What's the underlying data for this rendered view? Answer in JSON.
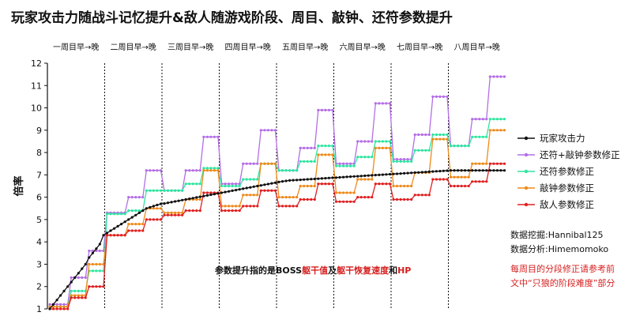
{
  "title": "玩家攻击力随战斗记忆提升&敌人随游戏阶段、周目、敲钟、还符参数提升",
  "credits": [
    "数据挖掘:Hannibal125",
    "数据分析:Himemomoko"
  ],
  "remark": "每周目的分段修正请参考前文中“只狼的阶段难度”部分",
  "note": {
    "prefix": "参数提升指的是BOSS",
    "hl1": "躯干值",
    "mid1": "及",
    "hl2": "躯干恢复速度",
    "mid2": "和",
    "hl3": "HP"
  },
  "colors": {
    "player": "#111111",
    "charm_bell": "#b46ee6",
    "charm": "#2ee6a0",
    "bell": "#ee8a1a",
    "enemy": "#e02020",
    "highlight": "#d61f1f"
  },
  "chart_data": {
    "type": "line",
    "title": "玩家攻击力随战斗记忆提升&敌人随游戏阶段、周目、敲钟、还符参数提升",
    "ylabel": "倍率",
    "ylim": [
      1,
      12
    ],
    "yticks": [
      1,
      2,
      3,
      4,
      5,
      6,
      7,
      8,
      9,
      10,
      11,
      12
    ],
    "grid": false,
    "legend_position": "right",
    "cycles": [
      "一周目早→晚",
      "二周目早→晚",
      "三周目早→晚",
      "四周目早→晚",
      "五周目早→晚",
      "六周目早→晚",
      "七周目早→晚",
      "八周目早→晚"
    ],
    "points_per_cycle": 16,
    "series": [
      {
        "name": "玩家攻击力",
        "values": [
          1.0,
          1.2,
          1.4,
          1.6,
          1.8,
          2.0,
          2.2,
          2.4,
          2.6,
          2.8,
          3.0,
          3.3,
          3.5,
          3.7,
          3.9,
          4.3,
          4.4,
          4.5,
          4.6,
          4.7,
          4.8,
          4.9,
          5.0,
          5.1,
          5.2,
          5.3,
          5.4,
          5.5,
          5.55,
          5.6,
          5.65,
          5.7,
          5.72,
          5.75,
          5.78,
          5.81,
          5.84,
          5.87,
          5.9,
          5.93,
          5.96,
          5.99,
          6.02,
          6.05,
          6.08,
          6.11,
          6.14,
          6.17,
          6.2,
          6.23,
          6.26,
          6.29,
          6.32,
          6.35,
          6.38,
          6.41,
          6.44,
          6.47,
          6.5,
          6.53,
          6.56,
          6.59,
          6.62,
          6.65,
          6.68,
          6.71,
          6.73,
          6.75,
          6.76,
          6.77,
          6.78,
          6.79,
          6.8,
          6.81,
          6.82,
          6.83,
          6.84,
          6.85,
          6.86,
          6.87,
          6.88,
          6.89,
          6.9,
          6.91,
          6.92,
          6.93,
          6.94,
          6.95,
          6.96,
          6.97,
          6.98,
          6.99,
          7.0,
          7.01,
          7.02,
          7.03,
          7.04,
          7.05,
          7.06,
          7.07,
          7.08,
          7.09,
          7.1,
          7.11,
          7.12,
          7.13,
          7.14,
          7.15,
          7.16,
          7.17,
          7.18,
          7.19,
          7.2,
          7.2,
          7.2,
          7.2,
          7.2,
          7.2,
          7.2,
          7.2,
          7.2,
          7.2,
          7.2,
          7.2,
          7.2,
          7.2,
          7.2,
          7.2
        ]
      },
      {
        "name": "还符+敲钟参数修正",
        "values": [
          1.2,
          1.2,
          1.2,
          1.2,
          1.2,
          1.2,
          2.4,
          2.4,
          2.4,
          2.4,
          2.4,
          3.6,
          3.6,
          3.6,
          3.6,
          3.6,
          5.3,
          5.3,
          5.3,
          5.3,
          5.3,
          5.3,
          6.0,
          6.0,
          6.0,
          6.0,
          6.0,
          7.2,
          7.2,
          7.2,
          7.2,
          7.2,
          6.3,
          6.3,
          6.3,
          6.3,
          6.3,
          6.3,
          7.2,
          7.2,
          7.2,
          7.2,
          7.2,
          8.7,
          8.7,
          8.7,
          8.7,
          8.7,
          6.6,
          6.6,
          6.6,
          6.6,
          6.6,
          6.6,
          7.5,
          7.5,
          7.5,
          7.5,
          7.5,
          9.0,
          9.0,
          9.0,
          9.0,
          9.0,
          7.2,
          7.2,
          7.2,
          7.2,
          7.2,
          7.2,
          8.2,
          8.2,
          8.2,
          8.2,
          8.2,
          9.9,
          9.9,
          9.9,
          9.9,
          9.9,
          7.5,
          7.5,
          7.5,
          7.5,
          7.5,
          7.5,
          8.5,
          8.5,
          8.5,
          8.5,
          8.5,
          10.2,
          10.2,
          10.2,
          10.2,
          10.2,
          7.7,
          7.7,
          7.7,
          7.7,
          7.7,
          7.7,
          8.8,
          8.8,
          8.8,
          8.8,
          8.8,
          10.5,
          10.5,
          10.5,
          10.5,
          10.5,
          8.3,
          8.3,
          8.3,
          8.3,
          8.3,
          8.3,
          9.5,
          9.5,
          9.5,
          9.5,
          9.5,
          11.4,
          11.4,
          11.4,
          11.4,
          11.4
        ]
      },
      {
        "name": "还符参数修正",
        "values": [
          1.1,
          1.1,
          1.1,
          1.1,
          1.1,
          1.1,
          1.8,
          1.8,
          1.8,
          1.8,
          1.8,
          2.7,
          2.7,
          2.7,
          2.7,
          2.7,
          5.25,
          5.25,
          5.25,
          5.25,
          5.25,
          5.25,
          5.4,
          5.4,
          5.4,
          5.4,
          5.4,
          6.3,
          6.3,
          6.3,
          6.3,
          6.3,
          6.3,
          6.3,
          6.3,
          6.3,
          6.3,
          6.3,
          6.6,
          6.6,
          6.6,
          6.6,
          6.6,
          7.3,
          7.3,
          7.3,
          7.3,
          7.3,
          6.5,
          6.5,
          6.5,
          6.5,
          6.5,
          6.5,
          6.8,
          6.8,
          6.8,
          6.8,
          6.8,
          7.5,
          7.5,
          7.5,
          7.5,
          7.5,
          7.2,
          7.2,
          7.2,
          7.2,
          7.2,
          7.2,
          7.6,
          7.6,
          7.6,
          7.6,
          7.6,
          8.3,
          8.3,
          8.3,
          8.3,
          8.3,
          7.4,
          7.4,
          7.4,
          7.4,
          7.4,
          7.4,
          7.8,
          7.8,
          7.8,
          7.8,
          7.8,
          8.5,
          8.5,
          8.5,
          8.5,
          8.5,
          7.6,
          7.6,
          7.6,
          7.6,
          7.6,
          7.6,
          8.1,
          8.1,
          8.1,
          8.1,
          8.1,
          8.8,
          8.8,
          8.8,
          8.8,
          8.8,
          8.3,
          8.3,
          8.3,
          8.3,
          8.3,
          8.3,
          8.7,
          8.7,
          8.7,
          8.7,
          8.7,
          9.5,
          9.5,
          9.5,
          9.5,
          9.5
        ]
      },
      {
        "name": "敲钟参数修正",
        "values": [
          1.1,
          1.1,
          1.1,
          1.1,
          1.1,
          1.1,
          1.6,
          1.6,
          1.6,
          1.6,
          1.6,
          3.0,
          3.0,
          3.0,
          3.0,
          3.0,
          4.3,
          4.3,
          4.3,
          4.3,
          4.3,
          4.3,
          4.8,
          4.8,
          4.8,
          4.8,
          4.8,
          5.5,
          5.5,
          5.5,
          5.5,
          5.5,
          5.3,
          5.3,
          5.3,
          5.3,
          5.3,
          5.3,
          5.9,
          5.9,
          5.9,
          5.9,
          5.9,
          7.2,
          7.2,
          7.2,
          7.2,
          7.2,
          5.6,
          5.6,
          5.6,
          5.6,
          5.6,
          5.6,
          6.1,
          6.1,
          6.1,
          6.1,
          6.1,
          7.5,
          7.5,
          7.5,
          7.5,
          7.5,
          6.0,
          6.0,
          6.0,
          6.0,
          6.0,
          6.0,
          6.5,
          6.5,
          6.5,
          6.5,
          6.5,
          7.9,
          7.9,
          7.9,
          7.9,
          7.9,
          6.2,
          6.2,
          6.2,
          6.2,
          6.2,
          6.2,
          6.8,
          6.8,
          6.8,
          6.8,
          6.8,
          8.2,
          8.2,
          8.2,
          8.2,
          8.2,
          6.5,
          6.5,
          6.5,
          6.5,
          6.5,
          6.5,
          7.1,
          7.1,
          7.1,
          7.1,
          7.1,
          8.6,
          8.6,
          8.6,
          8.6,
          8.6,
          6.9,
          6.9,
          6.9,
          6.9,
          6.9,
          6.9,
          7.5,
          7.5,
          7.5,
          7.5,
          7.5,
          9.0,
          9.0,
          9.0,
          9.0,
          9.0
        ]
      },
      {
        "name": "敌人参数修正",
        "values": [
          1.0,
          1.0,
          1.0,
          1.0,
          1.0,
          1.0,
          1.5,
          1.5,
          1.5,
          1.5,
          1.5,
          2.0,
          2.0,
          2.0,
          2.0,
          2.0,
          4.3,
          4.3,
          4.3,
          4.3,
          4.3,
          4.3,
          4.5,
          4.5,
          4.5,
          4.5,
          4.5,
          5.0,
          5.0,
          5.0,
          5.0,
          5.0,
          5.2,
          5.2,
          5.2,
          5.2,
          5.2,
          5.2,
          5.4,
          5.4,
          5.4,
          5.4,
          5.4,
          6.2,
          6.2,
          6.2,
          6.2,
          6.2,
          5.4,
          5.4,
          5.4,
          5.4,
          5.4,
          5.4,
          5.6,
          5.6,
          5.6,
          5.6,
          5.6,
          6.3,
          6.3,
          6.3,
          6.3,
          6.3,
          5.6,
          5.6,
          5.6,
          5.6,
          5.6,
          5.6,
          5.9,
          5.9,
          5.9,
          5.9,
          5.9,
          6.6,
          6.6,
          6.6,
          6.6,
          6.6,
          5.8,
          5.8,
          5.8,
          5.8,
          5.8,
          5.8,
          6.0,
          6.0,
          6.0,
          6.0,
          6.0,
          6.6,
          6.6,
          6.6,
          6.6,
          6.6,
          5.9,
          5.9,
          5.9,
          5.9,
          5.9,
          5.9,
          6.1,
          6.1,
          6.1,
          6.1,
          6.1,
          6.8,
          6.8,
          6.8,
          6.8,
          6.8,
          6.5,
          6.5,
          6.5,
          6.5,
          6.5,
          6.5,
          6.7,
          6.7,
          6.7,
          6.7,
          6.7,
          7.5,
          7.5,
          7.5,
          7.5,
          7.5
        ]
      }
    ]
  }
}
